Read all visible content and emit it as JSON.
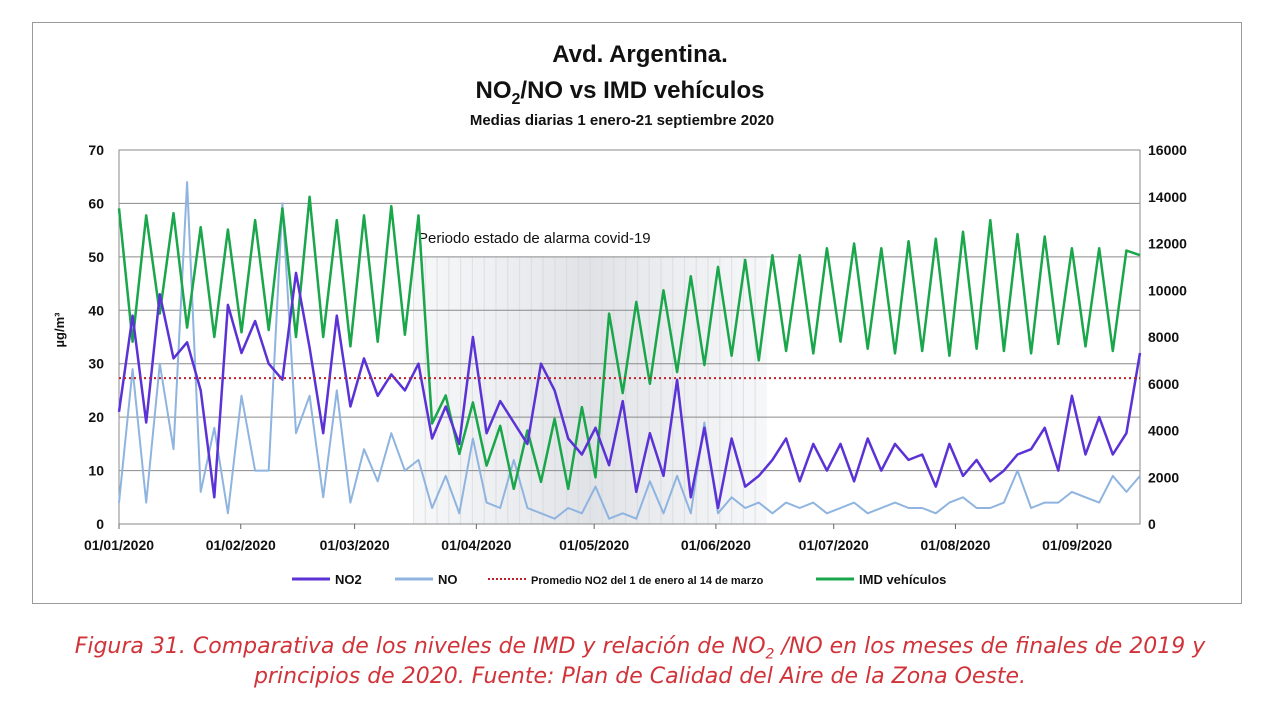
{
  "chart_data": {
    "type": "line",
    "title": "Avd.  Argentina.",
    "subtitle_main": "NO",
    "subtitle_sub": "2",
    "subtitle_rest": "/NO vs IMD vehículos",
    "subtitle2": "Medias diarias 1 enero-21 septiembre 2020",
    "ylabel": "µg/m³",
    "ylim": [
      0,
      70
    ],
    "y_ticks": [
      "0",
      "10",
      "20",
      "30",
      "40",
      "50",
      "60",
      "70"
    ],
    "y2lim": [
      0,
      16000
    ],
    "y2_ticks": [
      "0",
      "2000",
      "4000",
      "6000",
      "8000",
      "10000",
      "12000",
      "14000",
      "16000"
    ],
    "x_ticks": [
      "01/01/2020",
      "01/02/2020",
      "01/03/2020",
      "01/04/2020",
      "01/05/2020",
      "01/06/2020",
      "01/07/2020",
      "01/08/2020",
      "01/09/2020"
    ],
    "x_tick_days": [
      0,
      31,
      60,
      91,
      121,
      152,
      182,
      213,
      244
    ],
    "x_range_days": [
      0,
      260
    ],
    "annotation": "Periodo  estado de alarma covid-19",
    "shaded_period_days": [
      75,
      165
    ],
    "grid": true,
    "legend_position": "bottom",
    "series": [
      {
        "name": "NO2",
        "axis": "left",
        "color": "#5b32d6",
        "values": [
          21,
          39,
          19,
          43,
          31,
          34,
          25,
          5,
          41,
          32,
          38,
          30,
          27,
          47,
          33,
          17,
          39,
          22,
          31,
          24,
          28,
          25,
          30,
          16,
          22,
          15,
          35,
          17,
          23,
          19,
          15,
          30,
          25,
          16,
          13,
          18,
          11,
          23,
          6,
          17,
          9,
          27,
          5,
          18,
          3,
          16,
          7,
          9,
          12,
          16,
          8,
          15,
          10,
          15,
          8,
          16,
          10,
          15,
          12,
          13,
          7,
          15,
          9,
          12,
          8,
          10,
          13,
          14,
          18,
          10,
          24,
          13,
          20,
          13,
          17,
          32
        ]
      },
      {
        "name": "NO",
        "axis": "left",
        "color": "#8fb4e0",
        "values": [
          4,
          29,
          4,
          30,
          14,
          64,
          6,
          18,
          2,
          24,
          10,
          10,
          60,
          17,
          24,
          5,
          25,
          4,
          14,
          8,
          17,
          10,
          12,
          3,
          9,
          2,
          16,
          4,
          3,
          12,
          3,
          2,
          1,
          3,
          2,
          7,
          1,
          2,
          1,
          8,
          2,
          9,
          2,
          19,
          2,
          5,
          3,
          4,
          2,
          4,
          3,
          4,
          2,
          3,
          4,
          2,
          3,
          4,
          3,
          3,
          2,
          4,
          5,
          3,
          3,
          4,
          10,
          3,
          4,
          4,
          6,
          5,
          4,
          9,
          6,
          9
        ]
      },
      {
        "name": "Promedio NO2 del 1 de enero al 14 de marzo",
        "axis": "left",
        "color": "#c0202a",
        "constant": 27.3
      },
      {
        "name": "IMD vehículos",
        "axis": "right",
        "color": "#1aa64a",
        "values": [
          13500,
          7800,
          13200,
          9000,
          13300,
          8400,
          12700,
          8000,
          12600,
          8200,
          13000,
          8300,
          13500,
          8000,
          14000,
          8000,
          13000,
          7600,
          13200,
          7800,
          13600,
          8100,
          13200,
          4300,
          5500,
          3000,
          5200,
          2500,
          4200,
          1500,
          4000,
          1800,
          4500,
          1500,
          5000,
          2000,
          9000,
          5600,
          9500,
          6000,
          10000,
          6500,
          10600,
          6800,
          11000,
          7200,
          11300,
          7000,
          11500,
          7400,
          11500,
          7300,
          11800,
          7800,
          12000,
          7500,
          11800,
          7300,
          12100,
          7400,
          12200,
          7200,
          12500,
          7500,
          13000,
          7400,
          12400,
          7300,
          12300,
          7700,
          11800,
          7600,
          11800,
          7400,
          11700,
          11500
        ]
      }
    ],
    "legend": [
      "NO2",
      "NO",
      "Promedio NO2 del 1 de enero al 14 de marzo",
      "IMD vehículos"
    ]
  },
  "caption": {
    "line1_a": "Figura 31. Comparativa de los niveles de IMD y relación de NO",
    "line1_sub": "2",
    "line1_b": " /NO en los meses de finales de 2019 y",
    "line2": "principios de 2020. Fuente: Plan de Calidad del Aire de la Zona Oeste."
  }
}
